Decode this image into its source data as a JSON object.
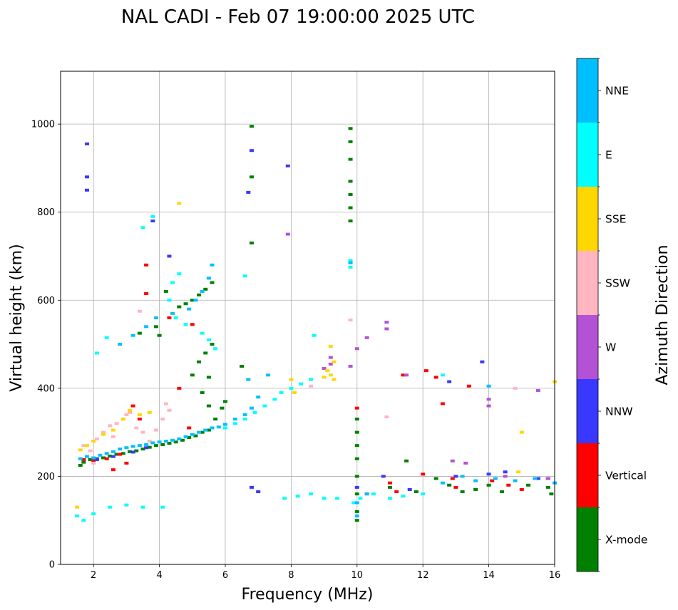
{
  "chart_data": {
    "type": "scatter",
    "title": "NAL CADI - Feb 07 19:00:00 2025 UTC",
    "xlabel": "Frequency (MHz)",
    "ylabel": "Virtual height (km)",
    "xlim": [
      1,
      16
    ],
    "ylim": [
      0,
      1120
    ],
    "xticks": [
      2,
      4,
      6,
      8,
      10,
      12,
      14,
      16
    ],
    "yticks": [
      0,
      200,
      400,
      600,
      800,
      1000
    ],
    "grid": true,
    "colorbar": {
      "title": "Azimuth Direction",
      "categories": [
        {
          "label": "X-mode",
          "color": "#008000"
        },
        {
          "label": "Vertical",
          "color": "#ff0000"
        },
        {
          "label": "NNW",
          "color": "#3838ff"
        },
        {
          "label": "W",
          "color": "#b452d6"
        },
        {
          "label": "SSW",
          "color": "#ffb6c1"
        },
        {
          "label": "SSE",
          "color": "#ffd700"
        },
        {
          "label": "E",
          "color": "#00ffff"
        },
        {
          "label": "NNE",
          "color": "#00bfff"
        }
      ]
    },
    "series": [
      {
        "name": "X-mode",
        "points": [
          [
            1.6,
            225
          ],
          [
            1.7,
            232
          ],
          [
            1.9,
            238
          ],
          [
            2.1,
            240
          ],
          [
            2.3,
            242
          ],
          [
            2.5,
            246
          ],
          [
            2.7,
            250
          ],
          [
            2.9,
            252
          ],
          [
            3.1,
            256
          ],
          [
            3.3,
            258
          ],
          [
            3.5,
            262
          ],
          [
            3.7,
            266
          ],
          [
            3.9,
            270
          ],
          [
            4.1,
            272
          ],
          [
            4.3,
            275
          ],
          [
            4.5,
            278
          ],
          [
            4.7,
            282
          ],
          [
            4.9,
            288
          ],
          [
            5.1,
            292
          ],
          [
            5.3,
            300
          ],
          [
            5.5,
            305
          ],
          [
            4.6,
            585
          ],
          [
            4.8,
            592
          ],
          [
            5.0,
            600
          ],
          [
            5.2,
            612
          ],
          [
            5.4,
            625
          ],
          [
            5.6,
            640
          ],
          [
            4.0,
            520
          ],
          [
            3.9,
            540
          ],
          [
            3.4,
            525
          ],
          [
            5.2,
            460
          ],
          [
            5.4,
            480
          ],
          [
            5.6,
            500
          ],
          [
            5.0,
            430
          ],
          [
            5.3,
            390
          ],
          [
            5.5,
            360
          ],
          [
            5.7,
            330
          ],
          [
            6.0,
            370
          ],
          [
            6.5,
            450
          ],
          [
            6.8,
            995
          ],
          [
            6.8,
            880
          ],
          [
            6.8,
            730
          ],
          [
            9.8,
            990
          ],
          [
            9.8,
            960
          ],
          [
            9.8,
            920
          ],
          [
            9.8,
            870
          ],
          [
            9.8,
            840
          ],
          [
            9.8,
            810
          ],
          [
            9.8,
            780
          ],
          [
            10.0,
            330
          ],
          [
            10.0,
            300
          ],
          [
            10.0,
            270
          ],
          [
            10.0,
            240
          ],
          [
            10.0,
            200
          ],
          [
            10.0,
            160
          ],
          [
            10.0,
            120
          ],
          [
            10.0,
            100
          ],
          [
            11.5,
            235
          ],
          [
            12.4,
            195
          ],
          [
            12.8,
            180
          ],
          [
            13.2,
            165
          ],
          [
            13.6,
            170
          ],
          [
            14.0,
            180
          ],
          [
            14.4,
            165
          ],
          [
            15.2,
            180
          ],
          [
            15.8,
            175
          ],
          [
            15.9,
            160
          ],
          [
            11.0,
            175
          ],
          [
            11.8,
            165
          ],
          [
            4.2,
            620
          ],
          [
            5.5,
            425
          ],
          [
            5.9,
            355
          ]
        ]
      },
      {
        "name": "Vertical",
        "points": [
          [
            1.7,
            238
          ],
          [
            2.0,
            236
          ],
          [
            2.4,
            240
          ],
          [
            2.8,
            250
          ],
          [
            3.2,
            360
          ],
          [
            3.4,
            330
          ],
          [
            3.6,
            680
          ],
          [
            3.6,
            615
          ],
          [
            4.3,
            560
          ],
          [
            4.9,
            310
          ],
          [
            5.0,
            545
          ],
          [
            10.0,
            355
          ],
          [
            10.3,
            160
          ],
          [
            11.0,
            185
          ],
          [
            11.4,
            430
          ],
          [
            12.1,
            440
          ],
          [
            12.4,
            425
          ],
          [
            12.6,
            365
          ],
          [
            12.9,
            195
          ],
          [
            13.4,
            405
          ],
          [
            14.1,
            190
          ],
          [
            15.0,
            170
          ],
          [
            15.8,
            195
          ],
          [
            2.6,
            215
          ],
          [
            3.0,
            230
          ],
          [
            4.6,
            400
          ],
          [
            11.2,
            165
          ],
          [
            12.0,
            205
          ],
          [
            13.0,
            175
          ],
          [
            14.6,
            180
          ]
        ]
      },
      {
        "name": "NNW",
        "points": [
          [
            1.8,
            955
          ],
          [
            1.8,
            880
          ],
          [
            1.8,
            850
          ],
          [
            2.1,
            238
          ],
          [
            2.6,
            245
          ],
          [
            3.2,
            255
          ],
          [
            3.6,
            265
          ],
          [
            4.3,
            700
          ],
          [
            6.7,
            845
          ],
          [
            6.8,
            940
          ],
          [
            6.8,
            175
          ],
          [
            7.0,
            165
          ],
          [
            7.9,
            905
          ],
          [
            10.0,
            175
          ],
          [
            10.8,
            200
          ],
          [
            11.6,
            170
          ],
          [
            13.0,
            200
          ],
          [
            14.0,
            205
          ],
          [
            14.5,
            210
          ],
          [
            15.5,
            195
          ],
          [
            13.8,
            460
          ],
          [
            12.8,
            415
          ],
          [
            3.8,
            780
          ]
        ]
      },
      {
        "name": "W",
        "points": [
          [
            9.2,
            470
          ],
          [
            9.2,
            455
          ],
          [
            9.0,
            445
          ],
          [
            10.0,
            490
          ],
          [
            10.3,
            515
          ],
          [
            10.9,
            550
          ],
          [
            10.9,
            535
          ],
          [
            11.5,
            430
          ],
          [
            12.9,
            235
          ],
          [
            13.3,
            230
          ],
          [
            14.0,
            375
          ],
          [
            14.0,
            360
          ],
          [
            14.5,
            200
          ],
          [
            15.5,
            395
          ],
          [
            15.8,
            195
          ],
          [
            7.9,
            750
          ],
          [
            9.8,
            450
          ]
        ]
      },
      {
        "name": "SSW",
        "points": [
          [
            1.7,
            270
          ],
          [
            1.9,
            258
          ],
          [
            2.1,
            285
          ],
          [
            2.3,
            300
          ],
          [
            2.5,
            315
          ],
          [
            2.7,
            320
          ],
          [
            2.9,
            330
          ],
          [
            3.1,
            345
          ],
          [
            3.3,
            310
          ],
          [
            3.5,
            300
          ],
          [
            3.7,
            280
          ],
          [
            3.9,
            305
          ],
          [
            4.1,
            330
          ],
          [
            4.3,
            350
          ],
          [
            3.0,
            340
          ],
          [
            2.6,
            290
          ],
          [
            9.8,
            555
          ],
          [
            10.9,
            335
          ],
          [
            14.8,
            400
          ],
          [
            8.6,
            405
          ],
          [
            3.4,
            575
          ],
          [
            4.2,
            365
          ],
          [
            2.0,
            230
          ]
        ]
      },
      {
        "name": "SSE",
        "points": [
          [
            1.6,
            260
          ],
          [
            1.8,
            270
          ],
          [
            2.0,
            280
          ],
          [
            2.3,
            295
          ],
          [
            2.6,
            305
          ],
          [
            2.9,
            330
          ],
          [
            3.1,
            350
          ],
          [
            3.4,
            340
          ],
          [
            3.7,
            345
          ],
          [
            4.6,
            820
          ],
          [
            9.2,
            495
          ],
          [
            9.3,
            460
          ],
          [
            9.2,
            430
          ],
          [
            9.3,
            420
          ],
          [
            9.1,
            440
          ],
          [
            8.1,
            390
          ],
          [
            9.0,
            425
          ],
          [
            15.0,
            300
          ],
          [
            16.0,
            415
          ],
          [
            14.9,
            210
          ],
          [
            1.5,
            130
          ],
          [
            8.0,
            420
          ]
        ]
      },
      {
        "name": "E",
        "points": [
          [
            1.5,
            110
          ],
          [
            1.7,
            100
          ],
          [
            2.0,
            115
          ],
          [
            2.5,
            130
          ],
          [
            3.0,
            135
          ],
          [
            3.5,
            130
          ],
          [
            4.1,
            130
          ],
          [
            7.8,
            150
          ],
          [
            8.2,
            155
          ],
          [
            8.6,
            160
          ],
          [
            9.0,
            150
          ],
          [
            9.4,
            150
          ],
          [
            9.9,
            140
          ],
          [
            10.1,
            150
          ],
          [
            10.5,
            160
          ],
          [
            11.0,
            150
          ],
          [
            11.4,
            155
          ],
          [
            12.0,
            160
          ],
          [
            12.6,
            430
          ],
          [
            6.0,
            310
          ],
          [
            6.3,
            320
          ],
          [
            6.6,
            330
          ],
          [
            6.9,
            345
          ],
          [
            7.2,
            360
          ],
          [
            7.5,
            375
          ],
          [
            7.7,
            390
          ],
          [
            8.0,
            400
          ],
          [
            8.3,
            410
          ],
          [
            8.6,
            420
          ],
          [
            5.7,
            490
          ],
          [
            5.5,
            510
          ],
          [
            5.3,
            525
          ],
          [
            4.6,
            660
          ],
          [
            4.5,
            560
          ],
          [
            4.3,
            600
          ],
          [
            4.4,
            640
          ],
          [
            3.8,
            790
          ],
          [
            3.5,
            765
          ],
          [
            6.6,
            655
          ],
          [
            9.8,
            690
          ],
          [
            9.8,
            675
          ],
          [
            8.7,
            520
          ],
          [
            2.1,
            480
          ],
          [
            2.4,
            515
          ],
          [
            4.8,
            545
          ]
        ]
      },
      {
        "name": "NNE",
        "points": [
          [
            1.6,
            240
          ],
          [
            1.8,
            245
          ],
          [
            2.0,
            242
          ],
          [
            2.2,
            248
          ],
          [
            2.4,
            252
          ],
          [
            2.6,
            256
          ],
          [
            2.8,
            262
          ],
          [
            3.0,
            265
          ],
          [
            3.2,
            268
          ],
          [
            3.4,
            270
          ],
          [
            3.6,
            272
          ],
          [
            3.8,
            276
          ],
          [
            4.0,
            278
          ],
          [
            4.2,
            280
          ],
          [
            4.4,
            282
          ],
          [
            4.6,
            285
          ],
          [
            4.8,
            290
          ],
          [
            5.0,
            295
          ],
          [
            5.2,
            300
          ],
          [
            5.4,
            305
          ],
          [
            5.6,
            310
          ],
          [
            5.8,
            312
          ],
          [
            6.0,
            318
          ],
          [
            6.3,
            330
          ],
          [
            6.6,
            340
          ],
          [
            6.8,
            355
          ],
          [
            7.0,
            380
          ],
          [
            4.9,
            580
          ],
          [
            5.1,
            600
          ],
          [
            5.3,
            620
          ],
          [
            5.5,
            650
          ],
          [
            5.6,
            680
          ],
          [
            3.9,
            560
          ],
          [
            4.4,
            570
          ],
          [
            2.8,
            500
          ],
          [
            3.2,
            520
          ],
          [
            3.6,
            540
          ],
          [
            9.8,
            685
          ],
          [
            10.0,
            140
          ],
          [
            10.0,
            110
          ],
          [
            10.3,
            160
          ],
          [
            12.6,
            185
          ],
          [
            13.2,
            200
          ],
          [
            13.6,
            190
          ],
          [
            14.2,
            195
          ],
          [
            14.8,
            190
          ],
          [
            15.4,
            195
          ],
          [
            16.0,
            185
          ],
          [
            14.0,
            405
          ],
          [
            6.7,
            420
          ],
          [
            7.3,
            430
          ]
        ]
      }
    ]
  }
}
